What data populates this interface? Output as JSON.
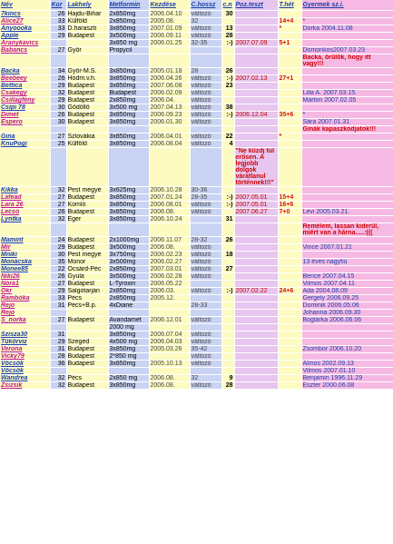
{
  "headers": [
    "Név",
    "Kor",
    "Lakhely",
    "Metformin",
    "Kezdése",
    "C.hossz",
    "c.n",
    "Poz.teszt",
    "T.hét",
    "Gyermek sz.i."
  ],
  "rows": [
    {
      "name": "7kincs",
      "kor": "26",
      "lak": "Hajdu-Bihar",
      "met": "2x850mg",
      "kezd": "2006.04.10",
      "ch": "változó",
      "cn": "30",
      "poz": "",
      "thet": "",
      "gy": "",
      "g": "boy"
    },
    {
      "name": "Alice27",
      "kor": "33",
      "lak": "Külföld",
      "met": "2x850mg",
      "kezd": "2005.08.",
      "ch": "32",
      "cn": "",
      "poz": "",
      "thet": "14+4",
      "gy": "*",
      "g": "girl"
    },
    {
      "name": "Anyoooka",
      "kor": "33",
      "lak": "D.haraszti",
      "met": "3x850mg",
      "kezd": "2007.01.09",
      "ch": "változó",
      "cn": "13",
      "poz": "",
      "thet": "*",
      "gy": "Dorka    2004.11.08",
      "g": "boy"
    },
    {
      "name": "Apple",
      "kor": "29",
      "lak": "Budapest",
      "met": "3x500mg",
      "kezd": "2006.09.11",
      "ch": "változó",
      "cn": "28",
      "poz": "",
      "thet": "",
      "gy": "",
      "g": "boy"
    },
    {
      "name": "Aranykavics",
      "kor": "",
      "lak": "",
      "met": "3x850 mg",
      "kezd": "2006.01.25",
      "ch": "32-35",
      "cn": ":-)",
      "poz": "2007.07.09",
      "thet": "5+1",
      "gy": "",
      "g": "girl"
    },
    {
      "name": "Babancs",
      "kor": "27",
      "lak": "Győr",
      "met": "Propycil",
      "kezd": "",
      "ch": "",
      "cn": "",
      "poz": "",
      "thet": "",
      "gy": "Domonkos2007.03.23",
      "g": "girl"
    },
    {
      "name": "",
      "kor": "",
      "lak": "",
      "met": "",
      "kezd": "",
      "ch": "",
      "cn": "",
      "poz": "",
      "thet": "",
      "gy": "Backa, örülök, hogy itt vagy!!!",
      "g": "msg"
    },
    {
      "name": "Backa",
      "kor": "34",
      "lak": "Győr-M.S.",
      "met": "3x850mg",
      "kezd": "2005.01.18",
      "ch": "28",
      "cn": "26",
      "poz": "",
      "thet": "",
      "gy": "",
      "g": "boy"
    },
    {
      "name": "Beebeey",
      "kor": "26",
      "lak": "Hódm.v.h.",
      "met": "3x850mg",
      "kezd": "2006.04.26",
      "ch": "változó",
      "cn": ":-)",
      "poz": "2007.02.13",
      "thet": "27+1",
      "gy": "",
      "g": "girl"
    },
    {
      "name": "Bettica",
      "kor": "29",
      "lak": "Budapest",
      "met": "3x850mg",
      "kezd": "2007.06.08",
      "ch": "változó",
      "cn": "23",
      "poz": "",
      "thet": "",
      "gy": "",
      "g": "boy"
    },
    {
      "name": "Csakegy",
      "kor": "32",
      "lak": "Budapest",
      "met": "Budapest",
      "kezd": "2006.02.09",
      "ch": "változó",
      "cn": "",
      "poz": "",
      "thet": "",
      "gy": "Lilla A.     2007.03.15.",
      "g": "girl"
    },
    {
      "name": "Csillagfény",
      "kor": "29",
      "lak": "Budapest",
      "met": "2x850mg",
      "kezd": "2006.04.",
      "ch": "változó",
      "cn": "",
      "poz": "",
      "thet": "",
      "gy": "Márton    2007.02.05",
      "g": "girl"
    },
    {
      "name": "Csipi 78",
      "kor": "30",
      "lak": "Gödöllő",
      "met": "3x500 mg",
      "kezd": "2007.04.13",
      "ch": "változó",
      "cn": "38",
      "poz": "",
      "thet": "",
      "gy": "",
      "g": "boy"
    },
    {
      "name": "Dimet",
      "kor": "26",
      "lak": "Budapest",
      "met": "3x850mg",
      "kezd": "2006.09.23",
      "ch": "változó",
      "cn": ":-)",
      "poz": "2006.12.04",
      "thet": "35+6",
      "gy": "*",
      "g": "girl"
    },
    {
      "name": "Espero",
      "kor": "30",
      "lak": "Budapest",
      "met": "3x850mg",
      "kezd": "2006.01.30",
      "ch": "változó",
      "cn": "",
      "poz": "",
      "thet": "",
      "gy": "Sára     2007.01.31",
      "g": "girl"
    },
    {
      "name": "",
      "kor": "",
      "lak": "",
      "met": "",
      "kezd": "",
      "ch": "",
      "cn": "",
      "poz": "",
      "thet": "",
      "gy": "Gínák kapaszkodjatok!!!",
      "g": "msg"
    },
    {
      "name": "Gina",
      "kor": "27",
      "lak": "Szlovákia",
      "met": "3x850mg",
      "kezd": "2006.04.01",
      "ch": "változó",
      "cn": "22",
      "poz": "",
      "thet": "*",
      "gy": "",
      "g": "boy"
    },
    {
      "name": "KnuPogi",
      "kor": "25",
      "lak": "Külföld",
      "met": "3x850mg",
      "kezd": "2006.08.04",
      "ch": "változó",
      "cn": "4",
      "poz": "",
      "thet": "",
      "gy": "",
      "g": "boy"
    },
    {
      "name": "",
      "kor": "",
      "lak": "",
      "met": "",
      "kezd": "",
      "ch": "",
      "cn": "",
      "poz": "\"Ne küzdj túl erősen. A legjobb dolgok váratlanul történnek!!!\"",
      "thet": "",
      "gy": "",
      "g": "msg2"
    },
    {
      "name": "Kikka",
      "kor": "32",
      "lak": "Pest megye",
      "met": "3x625mg",
      "kezd": "2006.10.28",
      "ch": "30-36",
      "cn": "",
      "poz": "",
      "thet": "",
      "gy": "",
      "g": "boy"
    },
    {
      "name": "Lafead",
      "kor": "27",
      "lak": "Budapest",
      "met": "3x850mg",
      "kezd": "2007.01.24",
      "ch": "28-35",
      "cn": ":-)",
      "poz": "2007.05.01",
      "thet": "15+4",
      "gy": "",
      "g": "girl"
    },
    {
      "name": "Lara 26",
      "kor": "27",
      "lak": "Komló",
      "met": "3x850mg",
      "kezd": "2006.08.01",
      "ch": "változó",
      "cn": ":-)",
      "poz": "2007.05.01",
      "thet": "16+6",
      "gy": "",
      "g": "girl"
    },
    {
      "name": "Lecsó",
      "kor": "26",
      "lak": "Budapest",
      "met": "3x850mg",
      "kezd": "2006.08.",
      "ch": "változó",
      "cn": "",
      "poz": "2007.06.27",
      "thet": "7+0",
      "gy": "Levi 2005.03.21.",
      "g": "girl"
    },
    {
      "name": "Lyntka",
      "kor": "32",
      "lak": "Eger",
      "met": "3x850mg",
      "kezd": "2006.10.24",
      "ch": "",
      "cn": "31",
      "poz": "",
      "thet": "",
      "gy": "",
      "g": "boy"
    },
    {
      "name": "",
      "kor": "",
      "lak": "",
      "met": "",
      "kezd": "",
      "ch": "",
      "cn": "",
      "poz": "",
      "thet": "",
      "gy": "Remélem, lassan kiderül, miért van a hárna.....:(((",
      "g": "msg"
    },
    {
      "name": "Mamint",
      "kor": "24",
      "lak": "Budapest",
      "met": "2x1000mg",
      "kezd": "2006.11.07",
      "ch": "28-32",
      "cn": "26",
      "poz": "",
      "thet": "",
      "gy": "",
      "g": "boy"
    },
    {
      "name": "Mír",
      "kor": "29",
      "lak": "Budapest",
      "met": "3x500mg",
      "kezd": "2006.08.",
      "ch": "változó",
      "cn": "",
      "poz": "",
      "thet": "",
      "gy": "Vince     2007.01.21",
      "g": "girl"
    },
    {
      "name": "Mniki",
      "kor": "30",
      "lak": "Pest megye",
      "met": "3x750mg",
      "kezd": "2006.02.23",
      "ch": "változó",
      "cn": "18",
      "poz": "",
      "thet": "",
      "gy": "",
      "g": "boy"
    },
    {
      "name": "Monácska",
      "kor": "35",
      "lak": "Monor",
      "met": "3x500mg",
      "kezd": "2006.02.27",
      "ch": "változó",
      "cn": "",
      "poz": "",
      "thet": "",
      "gy": "13 éves nagyfiú",
      "g": "boy"
    },
    {
      "name": "Monee85",
      "kor": "22",
      "lak": "Öcsárd-Péc",
      "met": "2x850mg",
      "kezd": "2007.03.01",
      "ch": "változó",
      "cn": "27",
      "poz": "",
      "thet": "",
      "gy": "",
      "g": "boy"
    },
    {
      "name": "Niki26",
      "kor": "26",
      "lak": "Gyula",
      "met": "3x500mg",
      "kezd": "2006.02.28",
      "ch": "változó",
      "cn": "",
      "poz": "",
      "thet": "",
      "gy": "Bence 2007.04.15",
      "g": "girl"
    },
    {
      "name": "Nóra1",
      "kor": "27",
      "lak": "Budapest",
      "met": "L-Tyroxin",
      "kezd": "2006.05.22",
      "ch": "",
      "cn": "",
      "poz": "",
      "thet": "",
      "gy": "Vilmos    2007.04.11",
      "g": "girl"
    },
    {
      "name": "Okr",
      "kor": "29",
      "lak": "Salgótarján",
      "met": "2x850mg",
      "kezd": "2006.03.",
      "ch": "változó",
      "cn": ":-)",
      "poz": "2007.02.22",
      "thet": "24+6",
      "gy": "Ada     2004.08.09",
      "g": "girl"
    },
    {
      "name": "Rambóka",
      "kor": "33",
      "lak": "Pécs",
      "met": "2x850mg",
      "kezd": "2005.12.",
      "ch": "",
      "cn": "",
      "poz": "",
      "thet": "",
      "gy": "Gergely   2006.09.25",
      "g": "girl"
    },
    {
      "name": "Rejo",
      "kor": "31",
      "lak": "Pécs+B.p.",
      "met": "4xDiane",
      "kezd": "",
      "ch": "28-33",
      "cn": "",
      "poz": "",
      "thet": "",
      "gy": "Dominik  2006.05.06",
      "g": "girl"
    },
    {
      "name": "Rejo",
      "kor": "",
      "lak": "",
      "met": "",
      "kezd": "",
      "ch": "",
      "cn": "",
      "poz": "",
      "thet": "",
      "gy": "Johanna   2006.09.30",
      "g": "girl"
    },
    {
      "name": "S_norka",
      "kor": "27",
      "lak": "Budapest",
      "met": "Avandamet",
      "kezd": "2006.12.01",
      "ch": "változó",
      "cn": "",
      "poz": "",
      "thet": "",
      "gy": "Boglárka 2006.06.06",
      "g": "girl"
    },
    {
      "name": "",
      "kor": "",
      "lak": "",
      "met": "2000 mg",
      "kezd": "",
      "ch": "",
      "cn": "",
      "poz": "",
      "thet": "",
      "gy": "",
      "g": "blank"
    },
    {
      "name": "Szisza30",
      "kor": "31",
      "lak": "",
      "met": "3x850mg",
      "kezd": "2006.07.04",
      "ch": "változó",
      "cn": "",
      "poz": "",
      "thet": "",
      "gy": "",
      "g": "boy"
    },
    {
      "name": "Tükörvíz",
      "kor": "29",
      "lak": "Szeged",
      "met": "4x500 mg",
      "kezd": "2006.04.03",
      "ch": "változó",
      "cn": "",
      "poz": "",
      "thet": "",
      "gy": "",
      "g": "boy"
    },
    {
      "name": "Verona",
      "kor": "31",
      "lak": "Budapest",
      "met": "3x850mg",
      "kezd": "2005.03.26",
      "ch": "35-42",
      "cn": "",
      "poz": "",
      "thet": "",
      "gy": "Zsombor 2006.10.20",
      "g": "girl"
    },
    {
      "name": "Vicky79",
      "kor": "28",
      "lak": "Budapest",
      "met": "2*850 mg",
      "kezd": "",
      "ch": "változó",
      "cn": "",
      "poz": "",
      "thet": "",
      "gy": "",
      "g": "girl"
    },
    {
      "name": "Vöcsök",
      "kor": "36",
      "lak": "Budapest",
      "met": "3x850mg",
      "kezd": "2005.10.13",
      "ch": "változó",
      "cn": "",
      "poz": "",
      "thet": "",
      "gy": "Álmos    2002.09.13",
      "g": "boy"
    },
    {
      "name": "Vöcsök",
      "kor": "",
      "lak": "",
      "met": "",
      "kezd": "",
      "ch": "",
      "cn": "",
      "poz": "",
      "thet": "",
      "gy": "Vilmos    2007.01.10",
      "g": "boy"
    },
    {
      "name": "Wandrea",
      "kor": "32",
      "lak": "Pécs",
      "met": "2x850 mg",
      "kezd": "2006.08.",
      "ch": "32",
      "cn": "9",
      "poz": "",
      "thet": "",
      "gy": "Benjamin 1996.11.29",
      "g": "boy"
    },
    {
      "name": "Zsizsik",
      "kor": "32",
      "lak": "Budapest",
      "met": "3x850mg",
      "kezd": "2006.08.",
      "ch": "változó",
      "cn": "28",
      "poz": "",
      "thet": "",
      "gy": "Eszter    2000.06.08",
      "g": "girl"
    }
  ]
}
